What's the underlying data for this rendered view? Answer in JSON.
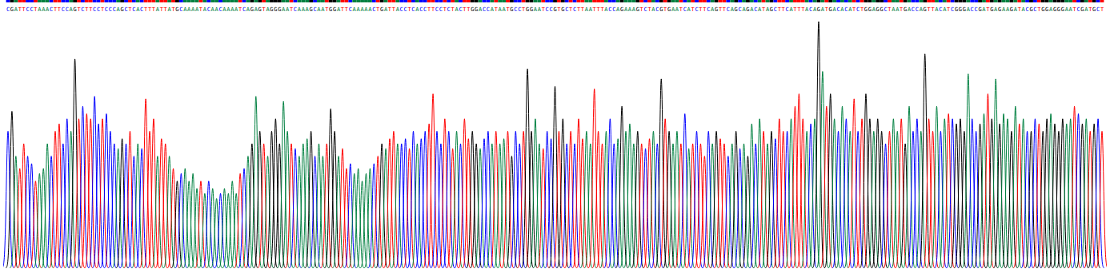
{
  "chart_data": {
    "type": "chromatogram",
    "categories": [
      "C",
      "G",
      "A",
      "T",
      "T",
      "C",
      "C",
      "T",
      "A",
      "A",
      "A",
      "C",
      "T",
      "T",
      "C",
      "C",
      "A",
      "G",
      "T",
      "C",
      "T",
      "T",
      "C",
      "C",
      "T",
      "C",
      "C",
      "C",
      "A",
      "G",
      "C",
      "T",
      "C",
      "A",
      "C",
      "T",
      "T",
      "T",
      "A",
      "T",
      "T",
      "A",
      "T",
      "G",
      "C",
      "A",
      "A",
      "A",
      "A",
      "T",
      "A",
      "C",
      "A",
      "A",
      "C",
      "A",
      "A",
      "A",
      "A",
      "T",
      "C",
      "A",
      "G",
      "A",
      "G",
      "T",
      "A",
      "G",
      "G",
      "G",
      "A",
      "A",
      "T",
      "C",
      "A",
      "A",
      "A",
      "G",
      "C",
      "A",
      "A",
      "T",
      "G",
      "G",
      "A",
      "T",
      "T",
      "C",
      "A",
      "A",
      "A",
      "A",
      "A",
      "C",
      "T",
      "G",
      "A",
      "T",
      "T",
      "A",
      "C",
      "C",
      "T",
      "C",
      "A",
      "C",
      "C",
      "T",
      "T",
      "C",
      "C",
      "T",
      "C",
      "T",
      "A",
      "C",
      "T",
      "T",
      "G",
      "G",
      "A",
      "C",
      "C",
      "A",
      "T",
      "A",
      "A",
      "T",
      "G",
      "C",
      "C",
      "T",
      "G",
      "G",
      "A",
      "A",
      "T",
      "C",
      "C",
      "G",
      "T",
      "G",
      "C",
      "T",
      "C",
      "T",
      "T",
      "A",
      "A",
      "T",
      "T",
      "T",
      "A",
      "C",
      "C",
      "A",
      "G",
      "A",
      "A",
      "A",
      "G",
      "T",
      "C",
      "T",
      "A",
      "C",
      "G",
      "T",
      "G",
      "A",
      "A",
      "T",
      "C",
      "A",
      "T",
      "C",
      "T",
      "T",
      "C",
      "A",
      "G",
      "T",
      "T",
      "C",
      "A",
      "G",
      "C",
      "A",
      "G",
      "A",
      "C",
      "A",
      "T",
      "A",
      "G",
      "C",
      "T",
      "T",
      "C",
      "A",
      "T",
      "T",
      "T",
      "A",
      "C",
      "A",
      "G",
      "A",
      "T",
      "G",
      "A",
      "C",
      "A",
      "C",
      "A",
      "T",
      "C",
      "T",
      "G",
      "G",
      "A",
      "G",
      "G",
      "C",
      "T",
      "A",
      "A",
      "T",
      "G",
      "A",
      "C",
      "C",
      "A",
      "G",
      "T",
      "T",
      "A",
      "C",
      "A",
      "T",
      "C",
      "G",
      "G",
      "G",
      "A",
      "C",
      "C",
      "G",
      "A",
      "T",
      "G",
      "A",
      "G",
      "A",
      "A",
      "G",
      "A",
      "T",
      "A",
      "C",
      "G",
      "C",
      "T",
      "G",
      "G",
      "A",
      "G",
      "G",
      "G",
      "A",
      "A",
      "T",
      "C",
      "G",
      "A",
      "T",
      "G",
      "C",
      "T"
    ],
    "values": [
      55,
      63,
      45,
      40,
      50,
      45,
      42,
      35,
      38,
      40,
      50,
      45,
      55,
      58,
      50,
      60,
      55,
      84,
      60,
      65,
      62,
      60,
      69,
      58,
      60,
      62,
      55,
      50,
      48,
      52,
      50,
      55,
      45,
      50,
      48,
      68,
      55,
      60,
      45,
      52,
      50,
      45,
      40,
      35,
      38,
      40,
      35,
      38,
      32,
      35,
      30,
      35,
      32,
      28,
      30,
      32,
      30,
      35,
      30,
      38,
      40,
      45,
      50,
      69,
      55,
      50,
      45,
      55,
      60,
      50,
      67,
      55,
      50,
      48,
      45,
      50,
      52,
      55,
      45,
      50,
      45,
      50,
      64,
      55,
      45,
      48,
      40,
      42,
      38,
      40,
      35,
      38,
      40,
      42,
      45,
      50,
      48,
      52,
      55,
      50,
      50,
      52,
      48,
      55,
      50,
      52,
      55,
      58,
      70,
      55,
      50,
      60,
      55,
      48,
      55,
      50,
      60,
      52,
      55,
      50,
      48,
      52,
      55,
      50,
      55,
      50,
      52,
      55,
      45,
      55,
      50,
      55,
      80,
      55,
      60,
      50,
      48,
      55,
      52,
      73,
      55,
      60,
      50,
      55,
      50,
      60,
      52,
      55,
      50,
      72,
      55,
      50,
      55,
      60,
      50,
      52,
      65,
      55,
      58,
      50,
      55,
      50,
      48,
      52,
      55,
      50,
      76,
      60,
      55,
      50,
      55,
      50,
      62,
      48,
      50,
      55,
      50,
      45,
      55,
      50,
      55,
      52,
      50,
      45,
      50,
      55,
      48,
      50,
      45,
      58,
      50,
      60,
      55,
      50,
      55,
      52,
      60,
      55,
      55,
      60,
      65,
      70,
      60,
      55,
      58,
      60,
      99,
      79,
      65,
      70,
      60,
      55,
      65,
      60,
      55,
      68,
      55,
      60,
      70,
      60,
      55,
      60,
      55,
      50,
      55,
      60,
      55,
      60,
      50,
      65,
      55,
      60,
      55,
      86,
      60,
      55,
      65,
      55,
      60,
      62,
      60,
      58,
      60,
      55,
      78,
      60,
      55,
      58,
      62,
      70,
      60,
      76,
      58,
      62,
      60,
      55,
      65,
      58,
      60,
      55,
      55,
      60,
      58,
      55,
      60,
      62,
      58,
      55,
      60,
      58,
      60,
      65,
      62,
      58,
      60,
      55,
      58,
      60,
      55
    ],
    "ylim": [
      0,
      100
    ],
    "tick_labels": false
  }
}
